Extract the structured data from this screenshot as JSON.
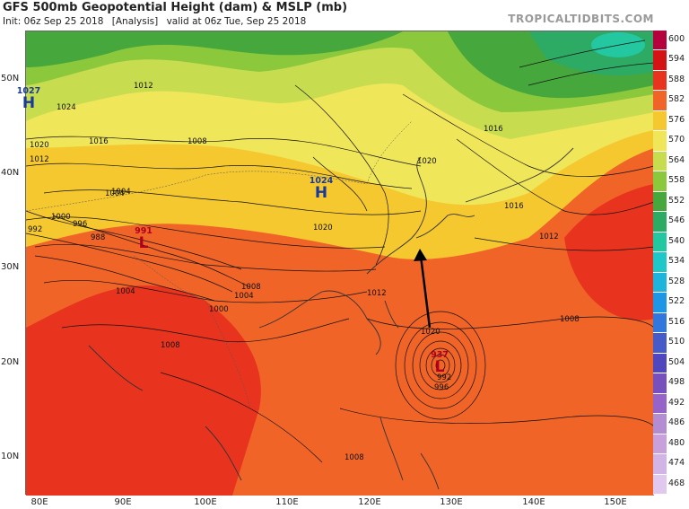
{
  "header": {
    "title": "GFS 500mb Geopotential Height (dam) & MSLP (mb)",
    "init": "Init: 06z Sep 25 2018",
    "analysis": "[Analysis]",
    "valid": "valid at 06z Tue, Sep 25 2018",
    "brand": "TROPICALTIDBITS.COM"
  },
  "axes": {
    "latitudes": [
      "50N",
      "40N",
      "30N",
      "20N",
      "10N"
    ],
    "longitudes": [
      "80E",
      "90E",
      "100E",
      "110E",
      "120E",
      "130E",
      "140E",
      "150E"
    ]
  },
  "colorbar": {
    "levels": [
      "600",
      "594",
      "588",
      "582",
      "576",
      "570",
      "564",
      "558",
      "552",
      "546",
      "540",
      "534",
      "528",
      "522",
      "516",
      "510",
      "504",
      "498",
      "492",
      "486",
      "480",
      "474",
      "468"
    ],
    "colors": [
      "#b4003c",
      "#d41414",
      "#e8341e",
      "#f06428",
      "#f5c830",
      "#f0e65a",
      "#c8dc50",
      "#8cc83c",
      "#46a83c",
      "#2daa64",
      "#23c8a0",
      "#1ec8c8",
      "#1eb4dc",
      "#1e96e6",
      "#3278dc",
      "#465ac8",
      "#5046be",
      "#7850be",
      "#9664c8",
      "#b48cd2",
      "#c8a0dc",
      "#d2b4e6",
      "#e1c8ee"
    ]
  },
  "systems": [
    {
      "type": "H",
      "pressure": "1027"
    },
    {
      "type": "H",
      "pressure": "1024"
    },
    {
      "type": "L",
      "pressure": "991"
    },
    {
      "type": "L",
      "pressure": "937"
    }
  ],
  "contour_labels": [
    "1024",
    "1020",
    "1016",
    "1012",
    "1008",
    "1004",
    "1000",
    "996",
    "992",
    "988",
    "1012",
    "1008",
    "1004",
    "1000",
    "1008",
    "1012",
    "1016",
    "1020",
    "1020",
    "1016",
    "1012",
    "1008",
    "1008",
    "1004",
    "996",
    "992",
    "1020",
    "1004"
  ]
}
